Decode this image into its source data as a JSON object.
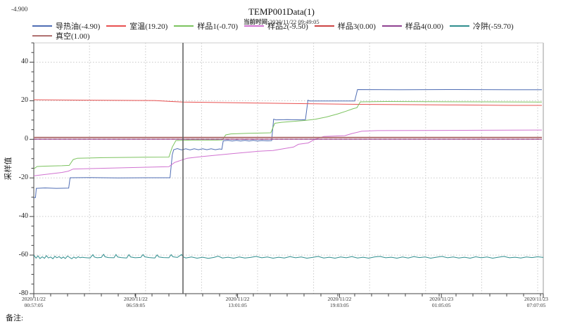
{
  "header": {
    "readout": "-4.900",
    "title": "TEMP001Data(1)",
    "subtitle_label": "当前时间:",
    "subtitle_datetime": "2020/11/22  09:49:05"
  },
  "footer": {
    "remark_label": "备注:"
  },
  "chart_data": {
    "type": "line",
    "title": "TEMP001Data(1)",
    "xlabel": "",
    "ylabel": "采样值",
    "ylim": [
      -80,
      50
    ],
    "y_ticks": [
      40,
      20,
      0,
      -20,
      -40,
      -60,
      -80
    ],
    "y_minor_step": 5,
    "grid": true,
    "legend_position": "top",
    "x_total_minutes": 1810,
    "x_minor_step_minutes": 60,
    "x_gridlines_minutes": [
      198,
      397,
      596,
      795,
      994,
      1193,
      1392,
      1591,
      1790
    ],
    "x_ticks": [
      {
        "minutes": 0,
        "date": "2020/11/22",
        "time": "00:57:05"
      },
      {
        "minutes": 362,
        "date": "2020/11/22",
        "time": "06:59:05"
      },
      {
        "minutes": 724,
        "date": "2020/11/22",
        "time": "13:01:05"
      },
      {
        "minutes": 1086,
        "date": "2020/11/22",
        "time": "19:03:05"
      },
      {
        "minutes": 1448,
        "date": "2020/11/23",
        "time": "01:05:05"
      },
      {
        "minutes": 1810,
        "date": "2020/11/23",
        "time": "07:07:05"
      }
    ],
    "cursor": {
      "minutes": 530,
      "color": "#5a5a5a"
    },
    "series": [
      {
        "key": "daoreyou",
        "name": "导热油",
        "current_value": "-4.90",
        "legend_label": "导热油(-4.90)",
        "color": "#4f6db4",
        "width": 1,
        "points": [
          [
            0,
            -30.2
          ],
          [
            6,
            -30.2
          ],
          [
            9,
            -25.4
          ],
          [
            40,
            -25.2
          ],
          [
            80,
            -25.4
          ],
          [
            124,
            -25.3
          ],
          [
            129,
            -19.9
          ],
          [
            200,
            -19.8
          ],
          [
            300,
            -20.0
          ],
          [
            400,
            -19.9
          ],
          [
            484,
            -19.9
          ],
          [
            492,
            -8.0
          ],
          [
            497,
            -5.4
          ],
          [
            510,
            -4.8
          ],
          [
            525,
            -5.5
          ],
          [
            540,
            -4.9
          ],
          [
            555,
            -5.5
          ],
          [
            570,
            -4.9
          ],
          [
            585,
            -5.4
          ],
          [
            600,
            -4.9
          ],
          [
            615,
            -5.4
          ],
          [
            630,
            -4.9
          ],
          [
            645,
            -5.4
          ],
          [
            660,
            -5.0
          ],
          [
            668,
            -5.2
          ],
          [
            673,
            -0.8
          ],
          [
            690,
            -0.5
          ],
          [
            705,
            -0.9
          ],
          [
            720,
            -0.5
          ],
          [
            735,
            -0.9
          ],
          [
            750,
            -0.5
          ],
          [
            765,
            -0.9
          ],
          [
            780,
            -0.5
          ],
          [
            795,
            -0.9
          ],
          [
            810,
            -0.6
          ],
          [
            830,
            -0.8
          ],
          [
            845,
            -0.7
          ],
          [
            852,
            10.4
          ],
          [
            860,
            10.1
          ],
          [
            900,
            10.2
          ],
          [
            950,
            10.1
          ],
          [
            965,
            10.2
          ],
          [
            974,
            20.3
          ],
          [
            980,
            19.9
          ],
          [
            1050,
            19.9
          ],
          [
            1140,
            19.9
          ],
          [
            1150,
            25.8
          ],
          [
            1300,
            25.7
          ],
          [
            1500,
            25.8
          ],
          [
            1700,
            25.7
          ],
          [
            1805,
            25.7
          ]
        ]
      },
      {
        "key": "shiwen",
        "name": "室温",
        "current_value": "19.20",
        "legend_label": "室温(19.20)",
        "color": "#e85050",
        "width": 1,
        "points": [
          [
            0,
            20.5
          ],
          [
            200,
            20.3
          ],
          [
            430,
            20.1
          ],
          [
            490,
            19.6
          ],
          [
            530,
            19.3
          ],
          [
            650,
            19.1
          ],
          [
            800,
            18.8
          ],
          [
            950,
            18.5
          ],
          [
            1100,
            18.2
          ],
          [
            1300,
            18.0
          ],
          [
            1500,
            17.8
          ],
          [
            1700,
            17.6
          ],
          [
            1805,
            17.6
          ]
        ]
      },
      {
        "key": "yangpin1",
        "name": "样品1",
        "current_value": "-0.70",
        "legend_label": "样品1(-0.70)",
        "color": "#7cc35f",
        "width": 1,
        "points": [
          [
            0,
            -15.3
          ],
          [
            12,
            -14.1
          ],
          [
            40,
            -13.9
          ],
          [
            100,
            -13.7
          ],
          [
            126,
            -13.5
          ],
          [
            140,
            -10.5
          ],
          [
            155,
            -9.8
          ],
          [
            250,
            -9.5
          ],
          [
            400,
            -9.3
          ],
          [
            480,
            -9.2
          ],
          [
            492,
            -4.0
          ],
          [
            505,
            -0.6
          ],
          [
            560,
            -0.4
          ],
          [
            650,
            -0.4
          ],
          [
            670,
            -0.3
          ],
          [
            682,
            2.3
          ],
          [
            700,
            2.8
          ],
          [
            760,
            3.1
          ],
          [
            820,
            3.3
          ],
          [
            842,
            3.4
          ],
          [
            856,
            8.3
          ],
          [
            880,
            8.8
          ],
          [
            930,
            9.4
          ],
          [
            965,
            9.8
          ],
          [
            1000,
            10.4
          ],
          [
            1040,
            11.6
          ],
          [
            1080,
            13.2
          ],
          [
            1110,
            14.6
          ],
          [
            1135,
            15.9
          ],
          [
            1148,
            16.4
          ],
          [
            1160,
            19.4
          ],
          [
            1250,
            19.6
          ],
          [
            1400,
            19.5
          ],
          [
            1600,
            19.4
          ],
          [
            1805,
            19.3
          ]
        ]
      },
      {
        "key": "yangpin2",
        "name": "样品2",
        "current_value": "-9.50",
        "legend_label": "样品2(-9.50)",
        "color": "#d173d1",
        "width": 1,
        "points": [
          [
            0,
            -18.9
          ],
          [
            100,
            -17.2
          ],
          [
            123,
            -16.5
          ],
          [
            140,
            -15.4
          ],
          [
            300,
            -14.8
          ],
          [
            480,
            -14.2
          ],
          [
            500,
            -12.0
          ],
          [
            545,
            -9.8
          ],
          [
            600,
            -8.9
          ],
          [
            700,
            -7.5
          ],
          [
            800,
            -6.2
          ],
          [
            850,
            -5.8
          ],
          [
            923,
            -4.0
          ],
          [
            940,
            -2.6
          ],
          [
            975,
            -1.9
          ],
          [
            995,
            -0.3
          ],
          [
            1030,
            1.5
          ],
          [
            1105,
            1.9
          ],
          [
            1130,
            3.0
          ],
          [
            1165,
            4.2
          ],
          [
            1220,
            4.5
          ],
          [
            1600,
            4.7
          ],
          [
            1805,
            4.8
          ]
        ]
      },
      {
        "key": "yangpin3",
        "name": "样品3",
        "current_value": "0.00",
        "legend_label": "样品3(0.00)",
        "color": "#cc4444",
        "width": 1,
        "dash": "4 3",
        "points": [
          [
            0,
            0
          ],
          [
            1805,
            0
          ]
        ]
      },
      {
        "key": "yangpin4",
        "name": "样品4",
        "current_value": "0.00",
        "legend_label": "样品4(0.00)",
        "color": "#8f4191",
        "width": 1,
        "points": [
          [
            0,
            0
          ],
          [
            1805,
            0
          ]
        ]
      },
      {
        "key": "lengjing",
        "name": "冷阱",
        "current_value": "-59.70",
        "legend_label": "冷阱(-59.70)",
        "color": "#2f8e8e",
        "width": 1,
        "points": [
          [
            0,
            -60.0
          ],
          [
            8,
            -61.6
          ],
          [
            15,
            -60.4
          ],
          [
            22,
            -61.8
          ],
          [
            30,
            -60.9
          ],
          [
            38,
            -61.7
          ],
          [
            45,
            -60.3
          ],
          [
            52,
            -61.5
          ],
          [
            60,
            -61.0
          ],
          [
            68,
            -61.9
          ],
          [
            75,
            -60.6
          ],
          [
            82,
            -61.4
          ],
          [
            90,
            -60.8
          ],
          [
            98,
            -61.7
          ],
          [
            105,
            -61.0
          ],
          [
            112,
            -61.8
          ],
          [
            120,
            -60.5
          ],
          [
            128,
            -61.3
          ],
          [
            135,
            -61.9
          ],
          [
            142,
            -61.0
          ],
          [
            150,
            -61.6
          ],
          [
            158,
            -60.9
          ],
          [
            165,
            -61.4
          ],
          [
            172,
            -61.1
          ],
          [
            180,
            -61.3
          ],
          [
            200,
            -61.5
          ],
          [
            210,
            -59.8
          ],
          [
            215,
            -61.0
          ],
          [
            225,
            -61.4
          ],
          [
            240,
            -61.2
          ],
          [
            248,
            -59.6
          ],
          [
            253,
            -60.9
          ],
          [
            265,
            -61.3
          ],
          [
            285,
            -61.4
          ],
          [
            292,
            -59.7
          ],
          [
            298,
            -61.0
          ],
          [
            310,
            -61.3
          ],
          [
            330,
            -61.5
          ],
          [
            338,
            -59.8
          ],
          [
            344,
            -61.0
          ],
          [
            360,
            -61.4
          ],
          [
            380,
            -61.2
          ],
          [
            388,
            -59.7
          ],
          [
            394,
            -60.9
          ],
          [
            410,
            -61.3
          ],
          [
            430,
            -61.5
          ],
          [
            438,
            -59.9
          ],
          [
            444,
            -61.0
          ],
          [
            460,
            -61.3
          ],
          [
            480,
            -61.4
          ],
          [
            488,
            -59.8
          ],
          [
            494,
            -60.9
          ],
          [
            510,
            -61.2
          ],
          [
            525,
            -59.7
          ],
          [
            532,
            -61.0
          ],
          [
            540,
            -61.5
          ],
          [
            560,
            -61.0
          ],
          [
            580,
            -61.6
          ],
          [
            600,
            -61.1
          ],
          [
            620,
            -61.7
          ],
          [
            640,
            -61.2
          ],
          [
            655,
            -60.6
          ],
          [
            670,
            -61.5
          ],
          [
            690,
            -61.1
          ],
          [
            710,
            -61.6
          ],
          [
            730,
            -61.0
          ],
          [
            750,
            -61.5
          ],
          [
            770,
            -61.2
          ],
          [
            790,
            -60.7
          ],
          [
            810,
            -61.4
          ],
          [
            830,
            -61.0
          ],
          [
            850,
            -61.6
          ],
          [
            870,
            -61.1
          ],
          [
            890,
            -61.5
          ],
          [
            910,
            -60.8
          ],
          [
            930,
            -61.4
          ],
          [
            950,
            -61.0
          ],
          [
            970,
            -61.6
          ],
          [
            990,
            -61.2
          ],
          [
            1010,
            -60.7
          ],
          [
            1030,
            -61.5
          ],
          [
            1050,
            -61.1
          ],
          [
            1070,
            -61.6
          ],
          [
            1090,
            -61.0
          ],
          [
            1110,
            -61.4
          ],
          [
            1130,
            -60.8
          ],
          [
            1150,
            -61.5
          ],
          [
            1170,
            -61.1
          ],
          [
            1190,
            -61.6
          ],
          [
            1210,
            -61.0
          ],
          [
            1230,
            -60.7
          ],
          [
            1250,
            -61.4
          ],
          [
            1270,
            -61.1
          ],
          [
            1290,
            -61.6
          ],
          [
            1310,
            -61.0
          ],
          [
            1330,
            -61.5
          ],
          [
            1350,
            -60.8
          ],
          [
            1370,
            -61.3
          ],
          [
            1390,
            -61.0
          ],
          [
            1410,
            -61.6
          ],
          [
            1430,
            -61.1
          ],
          [
            1450,
            -60.7
          ],
          [
            1470,
            -61.4
          ],
          [
            1490,
            -61.0
          ],
          [
            1510,
            -61.5
          ],
          [
            1530,
            -61.1
          ],
          [
            1550,
            -61.6
          ],
          [
            1570,
            -60.9
          ],
          [
            1590,
            -61.4
          ],
          [
            1610,
            -61.0
          ],
          [
            1630,
            -61.6
          ],
          [
            1650,
            -61.1
          ],
          [
            1670,
            -60.7
          ],
          [
            1690,
            -61.4
          ],
          [
            1710,
            -61.1
          ],
          [
            1730,
            -61.5
          ],
          [
            1750,
            -61.0
          ],
          [
            1770,
            -61.3
          ],
          [
            1790,
            -60.9
          ],
          [
            1810,
            -61.2
          ]
        ]
      },
      {
        "key": "zhenkong",
        "name": "真空",
        "current_value": "1.00",
        "legend_label": "真空(1.00)",
        "color": "#b07070",
        "width": 2,
        "points": [
          [
            0,
            0.9
          ],
          [
            1805,
            0.9
          ]
        ]
      }
    ],
    "colors": {
      "grid": "#c9c9c9",
      "axis": "#444444",
      "border_light": "#cccccc",
      "text": "#222222"
    }
  }
}
